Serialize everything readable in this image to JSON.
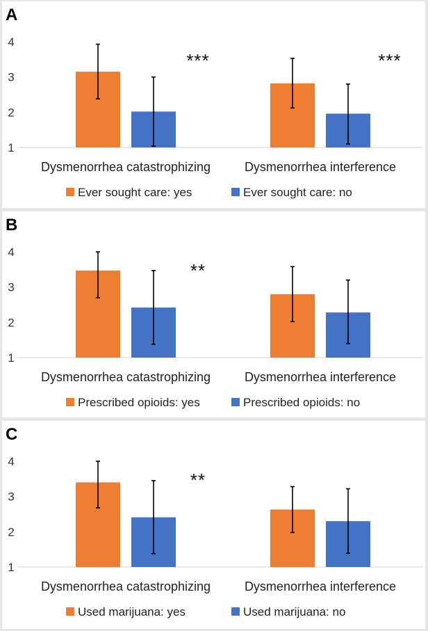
{
  "chart_data": [
    {
      "type": "bar",
      "panel": "A",
      "categories": [
        "Dysmenorrhea catastrophizing",
        "Dysmenorrhea interference"
      ],
      "ylim": [
        1,
        4
      ],
      "yticks": [
        1,
        2,
        3,
        4
      ],
      "series": [
        {
          "name": "Ever sought care: yes",
          "color": "#ED7D31",
          "values": [
            3.15,
            2.82
          ],
          "err_low": [
            2.38,
            2.12
          ],
          "err_high": [
            3.93,
            3.53
          ]
        },
        {
          "name": "Ever sought care: no",
          "color": "#4472C4",
          "values": [
            2.02,
            1.96
          ],
          "err_low": [
            1.04,
            1.1
          ],
          "err_high": [
            3.0,
            2.8
          ]
        }
      ],
      "significance": [
        "***",
        "***"
      ],
      "legend": "bottom"
    },
    {
      "type": "bar",
      "panel": "B",
      "categories": [
        "Dysmenorrhea catastrophizing",
        "Dysmenorrhea interference"
      ],
      "ylim": [
        1,
        4
      ],
      "yticks": [
        1,
        2,
        3,
        4
      ],
      "series": [
        {
          "name": "Prescribed opioids: yes",
          "color": "#ED7D31",
          "values": [
            3.47,
            2.8
          ],
          "err_low": [
            2.7,
            2.02
          ],
          "err_high": [
            4.0,
            3.58
          ]
        },
        {
          "name": "Prescribed opioids: no",
          "color": "#4472C4",
          "values": [
            2.42,
            2.28
          ],
          "err_low": [
            1.38,
            1.4
          ],
          "err_high": [
            3.47,
            3.2
          ]
        }
      ],
      "significance": [
        "**",
        ""
      ],
      "legend": "bottom"
    },
    {
      "type": "bar",
      "panel": "C",
      "categories": [
        "Dysmenorrhea catastrophizing",
        "Dysmenorrhea interference"
      ],
      "ylim": [
        1,
        4
      ],
      "yticks": [
        1,
        2,
        3,
        4
      ],
      "series": [
        {
          "name": "Used marijuana: yes",
          "color": "#ED7D31",
          "values": [
            3.4,
            2.63
          ],
          "err_low": [
            2.68,
            1.98
          ],
          "err_high": [
            4.0,
            3.28
          ]
        },
        {
          "name": "Used marijuana: no",
          "color": "#4472C4",
          "values": [
            2.41,
            2.3
          ],
          "err_low": [
            1.38,
            1.39
          ],
          "err_high": [
            3.45,
            3.22
          ]
        }
      ],
      "significance": [
        "**",
        ""
      ],
      "legend": "bottom"
    }
  ]
}
